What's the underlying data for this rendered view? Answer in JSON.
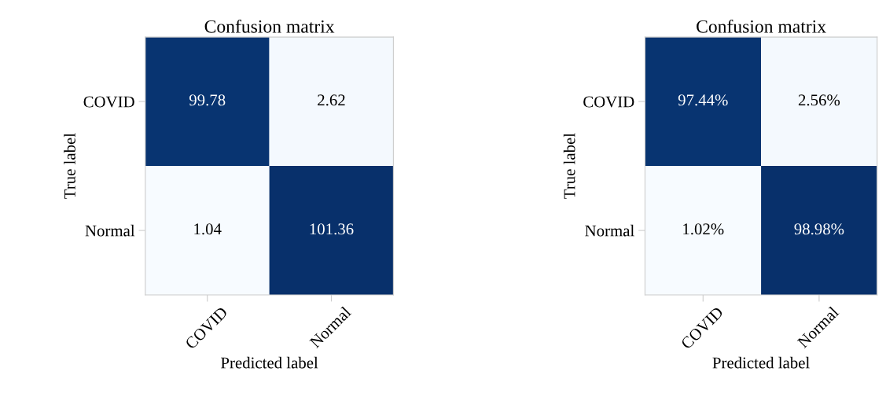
{
  "chart_data": [
    {
      "type": "heatmap",
      "title": "Confusion matrix",
      "xlabel": "Predicted label",
      "ylabel": "True label",
      "categories": [
        "COVID",
        "Normal"
      ],
      "y_categories": [
        "COVID",
        "Normal"
      ],
      "cells": [
        [
          99.78,
          2.62
        ],
        [
          1.04,
          101.36
        ]
      ],
      "data_labels": true
    },
    {
      "type": "heatmap",
      "title": "Confusion matrix",
      "xlabel": "Predicted label",
      "ylabel": "True label",
      "categories": [
        "COVID",
        "Normal"
      ],
      "y_categories": [
        "COVID",
        "Normal"
      ],
      "cells": [
        [
          97.44,
          2.56
        ],
        [
          1.02,
          98.98
        ]
      ],
      "cell_labels": [
        [
          "97.44%",
          "2.56%"
        ],
        [
          "1.02%",
          "98.98%"
        ]
      ]
    }
  ]
}
